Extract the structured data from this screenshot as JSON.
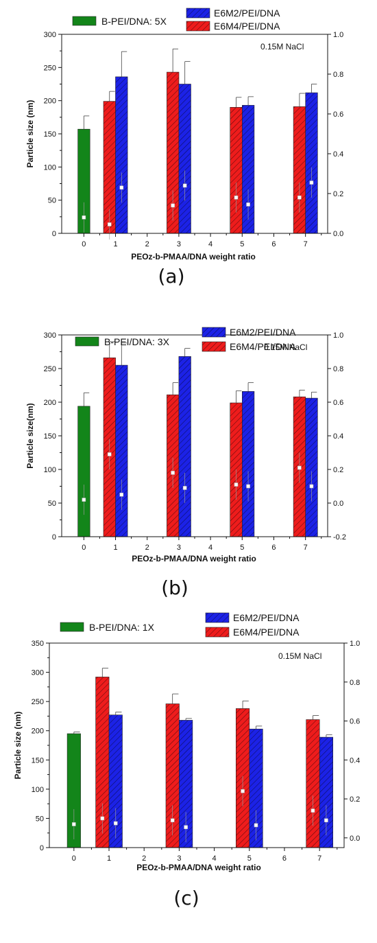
{
  "figure": {
    "xlabel": "PEOz-b-PMAA/DNA weight ratio",
    "note": "0.15M NaCl",
    "colors": {
      "green": "#13851a",
      "red": "#ee1c1c",
      "blue": "#1c22e6"
    }
  },
  "chart_data": [
    {
      "panel": "(a)",
      "type": "bar",
      "ylabel": "Particle size (nm)",
      "ylim": [
        0,
        300
      ],
      "yticks": [
        0,
        50,
        100,
        150,
        200,
        250,
        300
      ],
      "y2lim": [
        0,
        1.0
      ],
      "y2ticks": [
        "0.0",
        "0.2",
        "0.4",
        "0.6",
        "0.8",
        "1.0"
      ],
      "xlim": [
        -0.7,
        7.7
      ],
      "xticks": [
        0,
        1,
        2,
        3,
        4,
        5,
        6,
        7
      ],
      "legend": {
        "control": "B-PEI/DNA: 5X",
        "e6m2": "E6M2/PEI/DNA",
        "e6m4": "E6M4/PEI/DNA"
      },
      "series": [
        {
          "name": "B-PEI/DNA: 5X",
          "color": "green",
          "x": [
            0
          ],
          "values": [
            157
          ],
          "err": [
            20
          ]
        },
        {
          "name": "E6M4/PEI/DNA",
          "color": "red",
          "x": [
            1,
            3,
            5,
            7
          ],
          "values": [
            199,
            243,
            190,
            191
          ],
          "err": [
            15,
            35,
            15,
            20
          ]
        },
        {
          "name": "E6M2/PEI/DNA",
          "color": "blue",
          "x": [
            1,
            3,
            5,
            7
          ],
          "values": [
            236,
            225,
            193,
            212
          ],
          "err": [
            38,
            34,
            13,
            13
          ]
        }
      ],
      "points": [
        {
          "x": 0,
          "y2": 0.08
        },
        {
          "x": 1,
          "y2": 0.045
        },
        {
          "x": 1,
          "y2": 0.23
        },
        {
          "x": 3,
          "y2": 0.14
        },
        {
          "x": 3,
          "y2": 0.24
        },
        {
          "x": 5,
          "y2": 0.18
        },
        {
          "x": 5,
          "y2": 0.145
        },
        {
          "x": 7,
          "y2": 0.18
        },
        {
          "x": 7,
          "y2": 0.255
        }
      ]
    },
    {
      "panel": "(b)",
      "type": "bar",
      "ylabel": "Particle size(nm)",
      "ylim": [
        0,
        300
      ],
      "yticks": [
        0,
        50,
        100,
        150,
        200,
        250,
        300
      ],
      "y2lim": [
        -0.2,
        1.0
      ],
      "y2ticks": [
        "-0.2",
        "0.0",
        "0.2",
        "0.4",
        "0.6",
        "0.8",
        "1.0"
      ],
      "xlim": [
        -0.7,
        7.7
      ],
      "xticks": [
        0,
        1,
        2,
        3,
        4,
        5,
        6,
        7
      ],
      "legend": {
        "control": "B-PEI/DNA: 3X",
        "e6m2": "E6M2/PEI/DNA",
        "e6m4": "E6M4/PEI/DNA"
      },
      "series": [
        {
          "name": "B-PEI/DNA: 3X",
          "color": "green",
          "x": [
            0
          ],
          "values": [
            194
          ],
          "err": [
            20
          ]
        },
        {
          "name": "E6M4/PEI/DNA",
          "color": "red",
          "x": [
            1,
            3,
            5,
            7
          ],
          "values": [
            266,
            211,
            199,
            208
          ],
          "err": [
            24,
            18,
            18,
            10
          ]
        },
        {
          "name": "E6M2/PEI/DNA",
          "color": "blue",
          "x": [
            1,
            3,
            5,
            7
          ],
          "values": [
            255,
            268,
            216,
            206
          ],
          "err": [
            33,
            12,
            13,
            9
          ]
        }
      ],
      "points": [
        {
          "x": 0,
          "y2": 0.02
        },
        {
          "x": 1,
          "y2": 0.29
        },
        {
          "x": 1,
          "y2": 0.05
        },
        {
          "x": 3,
          "y2": 0.18
        },
        {
          "x": 3,
          "y2": 0.09
        },
        {
          "x": 5,
          "y2": 0.11
        },
        {
          "x": 5,
          "y2": 0.1
        },
        {
          "x": 7,
          "y2": 0.21
        },
        {
          "x": 7,
          "y2": 0.1
        }
      ]
    },
    {
      "panel": "(c)",
      "type": "bar",
      "ylabel": "Particle size (nm)",
      "ylim": [
        0,
        350
      ],
      "yticks": [
        0,
        50,
        100,
        150,
        200,
        250,
        300,
        350
      ],
      "y2lim": [
        -0.05,
        1.0
      ],
      "y2ticks": [
        "0.0",
        "0.2",
        "0.4",
        "0.6",
        "0.8",
        "1.0"
      ],
      "xlim": [
        -0.7,
        7.7
      ],
      "xticks": [
        0,
        1,
        2,
        3,
        4,
        5,
        6,
        7
      ],
      "legend": {
        "control": "B-PEI/DNA: 1X",
        "e6m2": "E6M2/PEI/DNA",
        "e6m4": "E6M4/PEI/DNA"
      },
      "series": [
        {
          "name": "B-PEI/DNA: 1X",
          "color": "green",
          "x": [
            0
          ],
          "values": [
            195
          ],
          "err": [
            3
          ]
        },
        {
          "name": "E6M4/PEI/DNA",
          "color": "red",
          "x": [
            1,
            3,
            5,
            7
          ],
          "values": [
            292,
            246,
            238,
            219
          ],
          "err": [
            15,
            17,
            13,
            7
          ]
        },
        {
          "name": "E6M2/PEI/DNA",
          "color": "blue",
          "x": [
            1,
            3,
            5,
            7
          ],
          "values": [
            227,
            218,
            203,
            189
          ],
          "err": [
            5,
            3,
            5,
            4
          ]
        }
      ],
      "points": [
        {
          "x": 0,
          "y2": 0.07
        },
        {
          "x": 1,
          "y2": 0.1
        },
        {
          "x": 1,
          "y2": 0.075
        },
        {
          "x": 3,
          "y2": 0.09
        },
        {
          "x": 3,
          "y2": 0.055
        },
        {
          "x": 5,
          "y2": 0.24
        },
        {
          "x": 5,
          "y2": 0.065
        },
        {
          "x": 7,
          "y2": 0.14
        },
        {
          "x": 7,
          "y2": 0.09
        }
      ]
    }
  ]
}
